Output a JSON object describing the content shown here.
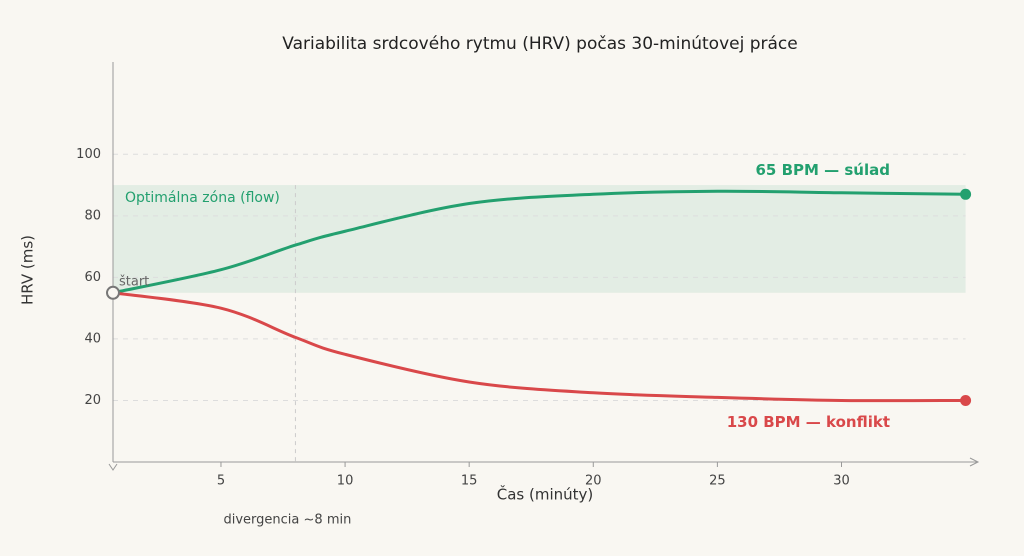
{
  "chart_data": {
    "type": "line",
    "title": "Variabilita srdcového rytmu (HRV) počas 30-minútovej práce",
    "x_label": "Čas (minúty)",
    "y_label": "HRV (ms)",
    "x": [
      0.65,
      5,
      8,
      10,
      15,
      20,
      25,
      30,
      35
    ],
    "series": [
      {
        "name": "65 BPM — súlad",
        "color": "#23a06f",
        "values": [
          55,
          62.5,
          70.5,
          75,
          84,
          87,
          88,
          87.5,
          87
        ]
      },
      {
        "name": "130 BPM — konflikt",
        "color": "#d9484a",
        "values": [
          55,
          50,
          40.5,
          35,
          26,
          22.5,
          21,
          20,
          20
        ]
      }
    ],
    "xlim": [
      0.65,
      35.5
    ],
    "ylim": [
      0,
      130
    ],
    "xticks": [
      5,
      10,
      15,
      20,
      25,
      30
    ],
    "yticks": [
      20,
      40,
      60,
      80,
      100
    ],
    "grid": true,
    "zone": {
      "range": [
        55,
        90
      ],
      "label": "Optimálna zóna (flow)",
      "color": "#23a06f"
    },
    "start_label": "štart",
    "divergence": {
      "x": 8,
      "label": "divergencia ~8 min"
    }
  }
}
